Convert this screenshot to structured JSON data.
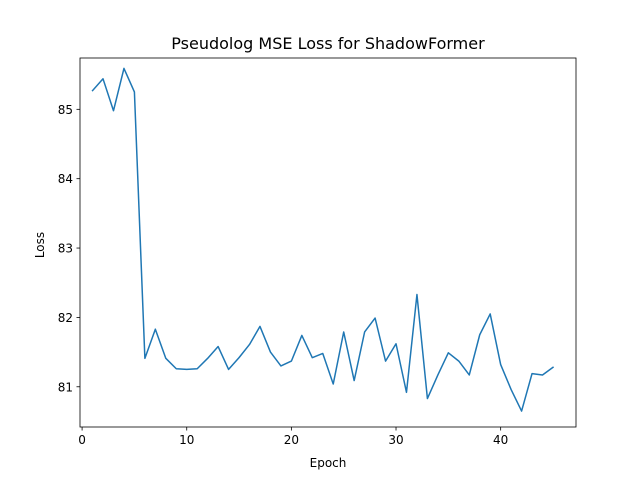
{
  "chart_data": {
    "type": "line",
    "title": "Pseudolog MSE Loss for ShadowFormer",
    "xlabel": "Epoch",
    "ylabel": "Loss",
    "xlim": [
      -0.2,
      47.2
    ],
    "ylim": [
      80.42,
      85.74
    ],
    "xticks": [
      0,
      10,
      20,
      30,
      40
    ],
    "yticks": [
      81,
      82,
      83,
      84,
      85
    ],
    "grid": false,
    "legend": "none",
    "line_color": "#1f77b4",
    "series": [
      {
        "x": [
          1,
          2,
          3,
          4,
          5,
          6,
          7,
          8,
          9,
          10,
          11,
          12,
          13,
          14,
          15,
          16,
          17,
          18,
          19,
          20,
          21,
          22,
          23,
          24,
          25,
          26,
          27,
          28,
          29,
          30,
          31,
          32,
          33,
          34,
          35,
          36,
          37,
          38,
          39,
          40,
          41,
          42,
          43,
          44,
          45
        ],
        "values": [
          85.27,
          85.44,
          84.98,
          85.59,
          85.25,
          81.41,
          81.83,
          81.41,
          81.26,
          81.25,
          81.26,
          81.41,
          81.58,
          81.25,
          81.42,
          81.61,
          81.87,
          81.5,
          81.3,
          81.37,
          81.74,
          81.42,
          81.48,
          81.04,
          81.79,
          81.09,
          81.79,
          81.99,
          81.37,
          81.62,
          80.92,
          82.33,
          80.83,
          81.17,
          81.49,
          81.37,
          81.17,
          81.75,
          82.05,
          81.32,
          80.96,
          80.65,
          81.19,
          81.17,
          81.28
        ]
      }
    ]
  }
}
